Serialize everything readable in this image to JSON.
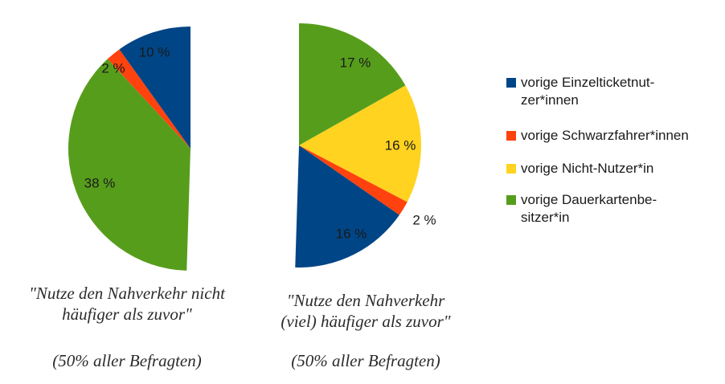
{
  "chart_data": [
    {
      "type": "pie",
      "half": "left",
      "slices": [
        {
          "series": "Einzelticket",
          "value": 10,
          "label": "10 %"
        },
        {
          "series": "Schwarzfahrer",
          "value": 2,
          "label": "2 %"
        },
        {
          "series": "Dauerkarten",
          "value": 38,
          "label": "38 %"
        }
      ],
      "caption_lines": [
        "\"Nutze den Nahverkehr nicht",
        "häufiger als zuvor\""
      ],
      "subcaption": "(50% aller Befragten)"
    },
    {
      "type": "pie",
      "half": "right",
      "slices": [
        {
          "series": "Dauerkarten",
          "value": 17,
          "label": "17 %"
        },
        {
          "series": "NichtNutzer",
          "value": 16,
          "label": "16 %"
        },
        {
          "series": "Schwarzfahrer",
          "value": 2,
          "label": "2 %"
        },
        {
          "series": "Einzelticket",
          "value": 16,
          "label": "16 %"
        }
      ],
      "caption_lines": [
        "\"Nutze den Nahverkehr",
        "(viel) häufiger als zuvor\""
      ],
      "subcaption": "(50% aller Befragten)"
    }
  ],
  "legend": [
    {
      "key": "Einzelticket",
      "label": "vorige Einzelticketnut-\nzer*innen",
      "color": "#004586"
    },
    {
      "key": "Schwarzfahrer",
      "label": "vorige Schwarzfahrer*innen",
      "color": "#ff420e"
    },
    {
      "key": "NichtNutzer",
      "label": "vorige Nicht-Nutzer*in",
      "color": "#ffd320"
    },
    {
      "key": "Dauerkarten",
      "label": "vorige Dauerkartenbe-\nsitzer*in",
      "color": "#579d1c"
    }
  ]
}
